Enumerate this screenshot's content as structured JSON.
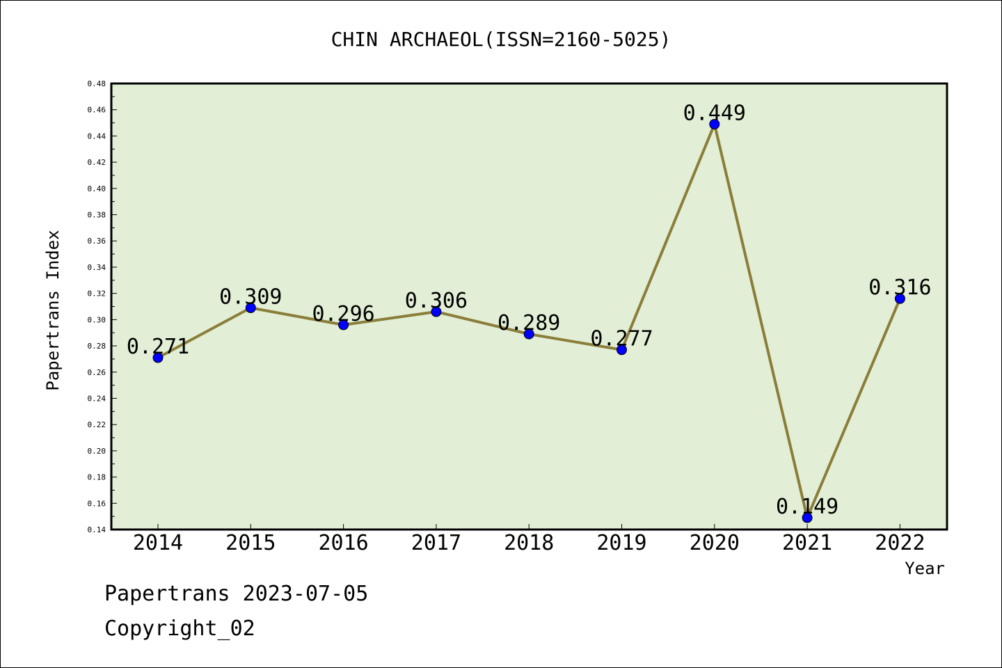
{
  "chart_data": {
    "type": "line",
    "title": "CHIN ARCHAEOL(ISSN=2160-5025)",
    "xlabel": "Year",
    "ylabel": "Papertrans Index",
    "categories": [
      "2014",
      "2015",
      "2016",
      "2017",
      "2018",
      "2019",
      "2020",
      "2021",
      "2022"
    ],
    "series": [
      {
        "values": [
          0.271,
          0.309,
          0.296,
          0.306,
          0.289,
          0.277,
          0.449,
          0.149,
          0.316
        ],
        "labels": [
          "0.271",
          "0.309",
          "0.296",
          "0.306",
          "0.289",
          "0.277",
          "0.449",
          "0.149",
          "0.316"
        ]
      }
    ],
    "ylim": [
      0.14,
      0.48
    ],
    "yticks": [
      "0.14",
      "0.16",
      "0.18",
      "0.20",
      "0.22",
      "0.24",
      "0.26",
      "0.28",
      "0.30",
      "0.32",
      "0.34",
      "0.36",
      "0.38",
      "0.40",
      "0.42",
      "0.44",
      "0.46",
      "0.48"
    ],
    "grid": false,
    "legend": "none",
    "colors": {
      "plot_background": "#e2efd6",
      "line": "#8b7d3a",
      "marker": "#0000ff",
      "axis": "#000000"
    }
  },
  "footer": {
    "line1": "Papertrans 2023-07-05",
    "line2": "Copyright_02"
  }
}
